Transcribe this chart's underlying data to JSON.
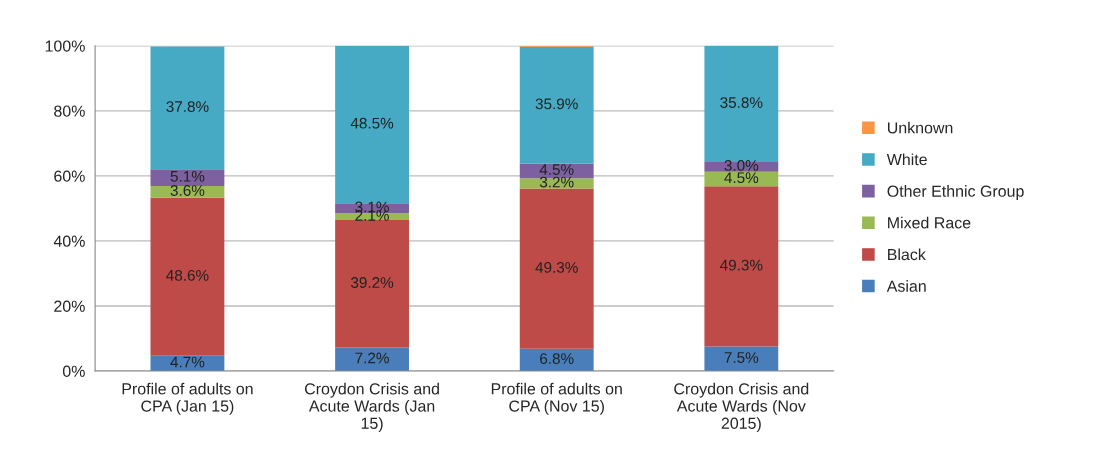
{
  "chart_data": {
    "type": "bar",
    "stacked": true,
    "categories": [
      "Profile of adults on\nCPA (Jan 15)",
      "Croydon Crisis and\nAcute Wards (Jan\n15)",
      "Profile of adults on\nCPA (Nov 15)",
      "Croydon Crisis and\nAcute Wards (Nov\n2015)"
    ],
    "series": [
      {
        "name": "Asian",
        "color": "#4a7ebb",
        "values": [
          4.7,
          7.2,
          6.8,
          7.5
        ],
        "value_labels": [
          "4.7%",
          "7.2%",
          "6.8%",
          "7.5%"
        ]
      },
      {
        "name": "Black",
        "color": "#be4b48",
        "values": [
          48.6,
          39.2,
          49.3,
          49.3
        ],
        "value_labels": [
          "48.6%",
          "39.2%",
          "49.3%",
          "49.3%"
        ]
      },
      {
        "name": "Mixed Race",
        "color": "#98b954",
        "values": [
          3.6,
          2.1,
          3.2,
          4.5
        ],
        "value_labels": [
          "3.6%",
          "2.1%",
          "3.2%",
          "4.5%"
        ]
      },
      {
        "name": "Other Ethnic Group",
        "color": "#7d60a0",
        "values": [
          5.1,
          3.1,
          4.5,
          3.0
        ],
        "value_labels": [
          "5.1%",
          "3.1%",
          "4.5%",
          "3.0%"
        ]
      },
      {
        "name": "White",
        "color": "#46aac5",
        "values": [
          37.8,
          48.5,
          35.9,
          35.8
        ],
        "value_labels": [
          "37.8%",
          "48.5%",
          "35.9%",
          "35.8%"
        ]
      },
      {
        "name": "Unknown",
        "color": "#f79646",
        "values": [
          null,
          0,
          0.3,
          0
        ],
        "value_labels": [
          null,
          null,
          null,
          null
        ]
      }
    ],
    "ylim": [
      0,
      100
    ],
    "yticks": [
      {
        "value": 0,
        "label": "0%"
      },
      {
        "value": 20,
        "label": "20%"
      },
      {
        "value": 40,
        "label": "40%"
      },
      {
        "value": 60,
        "label": "60%"
      },
      {
        "value": 80,
        "label": "80%"
      },
      {
        "value": 100,
        "label": "100%"
      }
    ],
    "grid": "y",
    "legend": "right"
  }
}
